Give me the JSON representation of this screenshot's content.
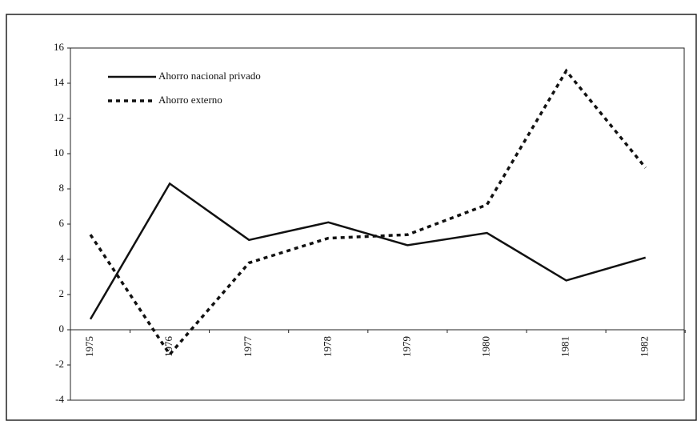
{
  "chart_data": {
    "type": "line",
    "categories": [
      "1975",
      "1976",
      "1977",
      "1978",
      "1979",
      "1980",
      "1981",
      "1982"
    ],
    "series": [
      {
        "name": "Ahorro nacional privado",
        "color": "#111111",
        "style": "solid",
        "values": [
          0.6,
          8.3,
          5.1,
          6.1,
          4.8,
          5.5,
          2.8,
          4.1
        ]
      },
      {
        "name": "Ahorro externo",
        "color": "#111111",
        "style": "dotted",
        "values": [
          5.4,
          -1.4,
          3.8,
          5.2,
          5.4,
          7.1,
          14.7,
          9.2
        ]
      }
    ],
    "ylim": [
      -4,
      16
    ],
    "yticks": [
      -4,
      -2,
      0,
      2,
      4,
      6,
      8,
      10,
      12,
      14,
      16
    ],
    "grid": false,
    "legend": "upper left"
  }
}
